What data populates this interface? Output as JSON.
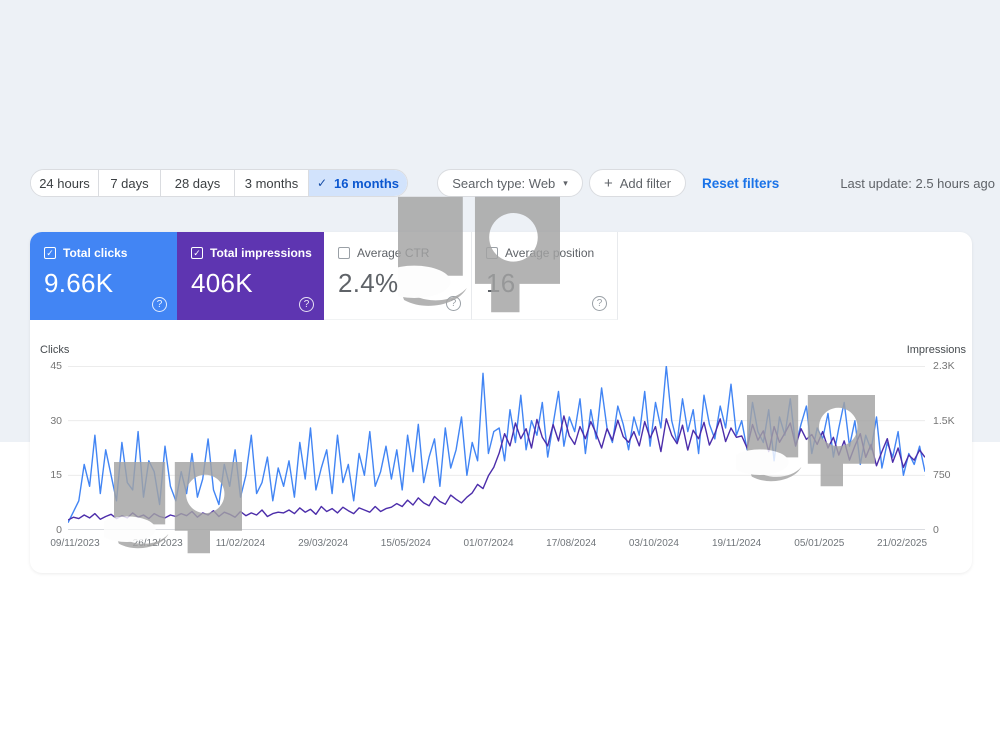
{
  "icons": {
    "check": "✓",
    "caret_down": "▾",
    "plus": "+",
    "help": "?"
  },
  "filter_bar": {
    "date_ranges": [
      {
        "label": "24 hours",
        "selected": false
      },
      {
        "label": "7 days",
        "selected": false
      },
      {
        "label": "28 days",
        "selected": false
      },
      {
        "label": "3 months",
        "selected": false
      },
      {
        "label": "16 months",
        "selected": true
      }
    ],
    "search_type_label": "Search type: Web",
    "add_filter_label": "Add filter",
    "reset_filters_label": "Reset filters",
    "last_update": "Last update: 2.5 hours ago"
  },
  "metrics": [
    {
      "label": "Total clicks",
      "value": "9.66K",
      "checked": true,
      "color": "#4285f4"
    },
    {
      "label": "Total impressions",
      "value": "406K",
      "checked": true,
      "color": "#5e35b1"
    },
    {
      "label": "Average CTR",
      "value": "2.4%",
      "checked": false,
      "color": "#ffffff"
    },
    {
      "label": "Average position",
      "value": "16",
      "checked": false,
      "color": "#ffffff"
    }
  ],
  "chart_data": {
    "type": "line",
    "grid": true,
    "legend_position": "none",
    "left_axis": {
      "label": "Clicks",
      "max": 45,
      "ticks": [
        "45",
        "30",
        "15",
        "0"
      ]
    },
    "right_axis": {
      "label": "Impressions",
      "max": 2300,
      "ticks": [
        "2.3K",
        "1.5K",
        "750",
        "0"
      ]
    },
    "x_tick_labels": [
      "09/11/2023",
      "26/12/2023",
      "11/02/2024",
      "29/03/2024",
      "15/05/2024",
      "01/07/2024",
      "17/08/2024",
      "03/10/2024",
      "19/11/2024",
      "05/01/2025",
      "21/02/2025"
    ],
    "series": [
      {
        "name": "Clicks",
        "axis": "left",
        "color": "#4285f4",
        "values": [
          2,
          5,
          8,
          18,
          12,
          26,
          10,
          22,
          15,
          8,
          24,
          13,
          11,
          27,
          9,
          19,
          16,
          7,
          23,
          12,
          8,
          16,
          10,
          21,
          9,
          14,
          25,
          11,
          7,
          18,
          12,
          22,
          9,
          15,
          26,
          10,
          13,
          20,
          8,
          17,
          12,
          19,
          9,
          24,
          14,
          28,
          11,
          17,
          22,
          10,
          26,
          13,
          18,
          8,
          21,
          15,
          27,
          12,
          16,
          23,
          14,
          22,
          11,
          26,
          16,
          29,
          13,
          20,
          25,
          12,
          28,
          17,
          22,
          31,
          15,
          24,
          19,
          43,
          21,
          27,
          28,
          19,
          33,
          24,
          37,
          22,
          30,
          26,
          35,
          20,
          29,
          38,
          23,
          31,
          27,
          36,
          21,
          33,
          25,
          39,
          28,
          24,
          34,
          29,
          22,
          31,
          26,
          38,
          23,
          35,
          28,
          45,
          30,
          24,
          36,
          27,
          33,
          21,
          37,
          29,
          25,
          34,
          28,
          40,
          26,
          30,
          22,
          35,
          27,
          24,
          33,
          19,
          31,
          26,
          36,
          23,
          29,
          34,
          21,
          28,
          25,
          32,
          20,
          28,
          35,
          23,
          30,
          18,
          26,
          22,
          31,
          17,
          24,
          20,
          27,
          15,
          21,
          18,
          23,
          16
        ]
      },
      {
        "name": "Impressions",
        "axis": "right",
        "color": "#4c2daa",
        "values": [
          140,
          180,
          160,
          210,
          170,
          230,
          150,
          190,
          220,
          160,
          200,
          170,
          240,
          180,
          210,
          160,
          230,
          190,
          170,
          210,
          190,
          230,
          200,
          260,
          180,
          240,
          210,
          270,
          190,
          250,
          220,
          180,
          260,
          200,
          240,
          210,
          280,
          190,
          230,
          250,
          240,
          280,
          230,
          310,
          250,
          290,
          220,
          330,
          260,
          300,
          240,
          320,
          270,
          230,
          310,
          280,
          250,
          330,
          260,
          300,
          320,
          370,
          330,
          420,
          350,
          450,
          380,
          340,
          470,
          400,
          360,
          490,
          430,
          380,
          460,
          520,
          640,
          580,
          760,
          880,
          1080,
          1350,
          1180,
          1500,
          1280,
          1420,
          1150,
          1550,
          1300,
          1180,
          1480,
          1250,
          1600,
          1320,
          1200,
          1450,
          1280,
          1520,
          1350,
          1150,
          1420,
          1260,
          1540,
          1310,
          1230,
          1380,
          1180,
          1520,
          1290,
          1450,
          1100,
          1560,
          1330,
          1210,
          1470,
          1120,
          1400,
          1280,
          1510,
          1190,
          1350,
          1560,
          1240,
          1430,
          1300,
          1320,
          1150,
          1480,
          1260,
          1390,
          1100,
          1450,
          1230,
          1360,
          1500,
          1180,
          1420,
          1270,
          1340,
          1200,
          1380,
          1150,
          1300,
          1050,
          1250,
          980,
          1180,
          1350,
          1020,
          1200,
          900,
          1100,
          1280,
          950,
          1150,
          880,
          1050,
          980,
          1120,
          1020
        ]
      }
    ]
  }
}
